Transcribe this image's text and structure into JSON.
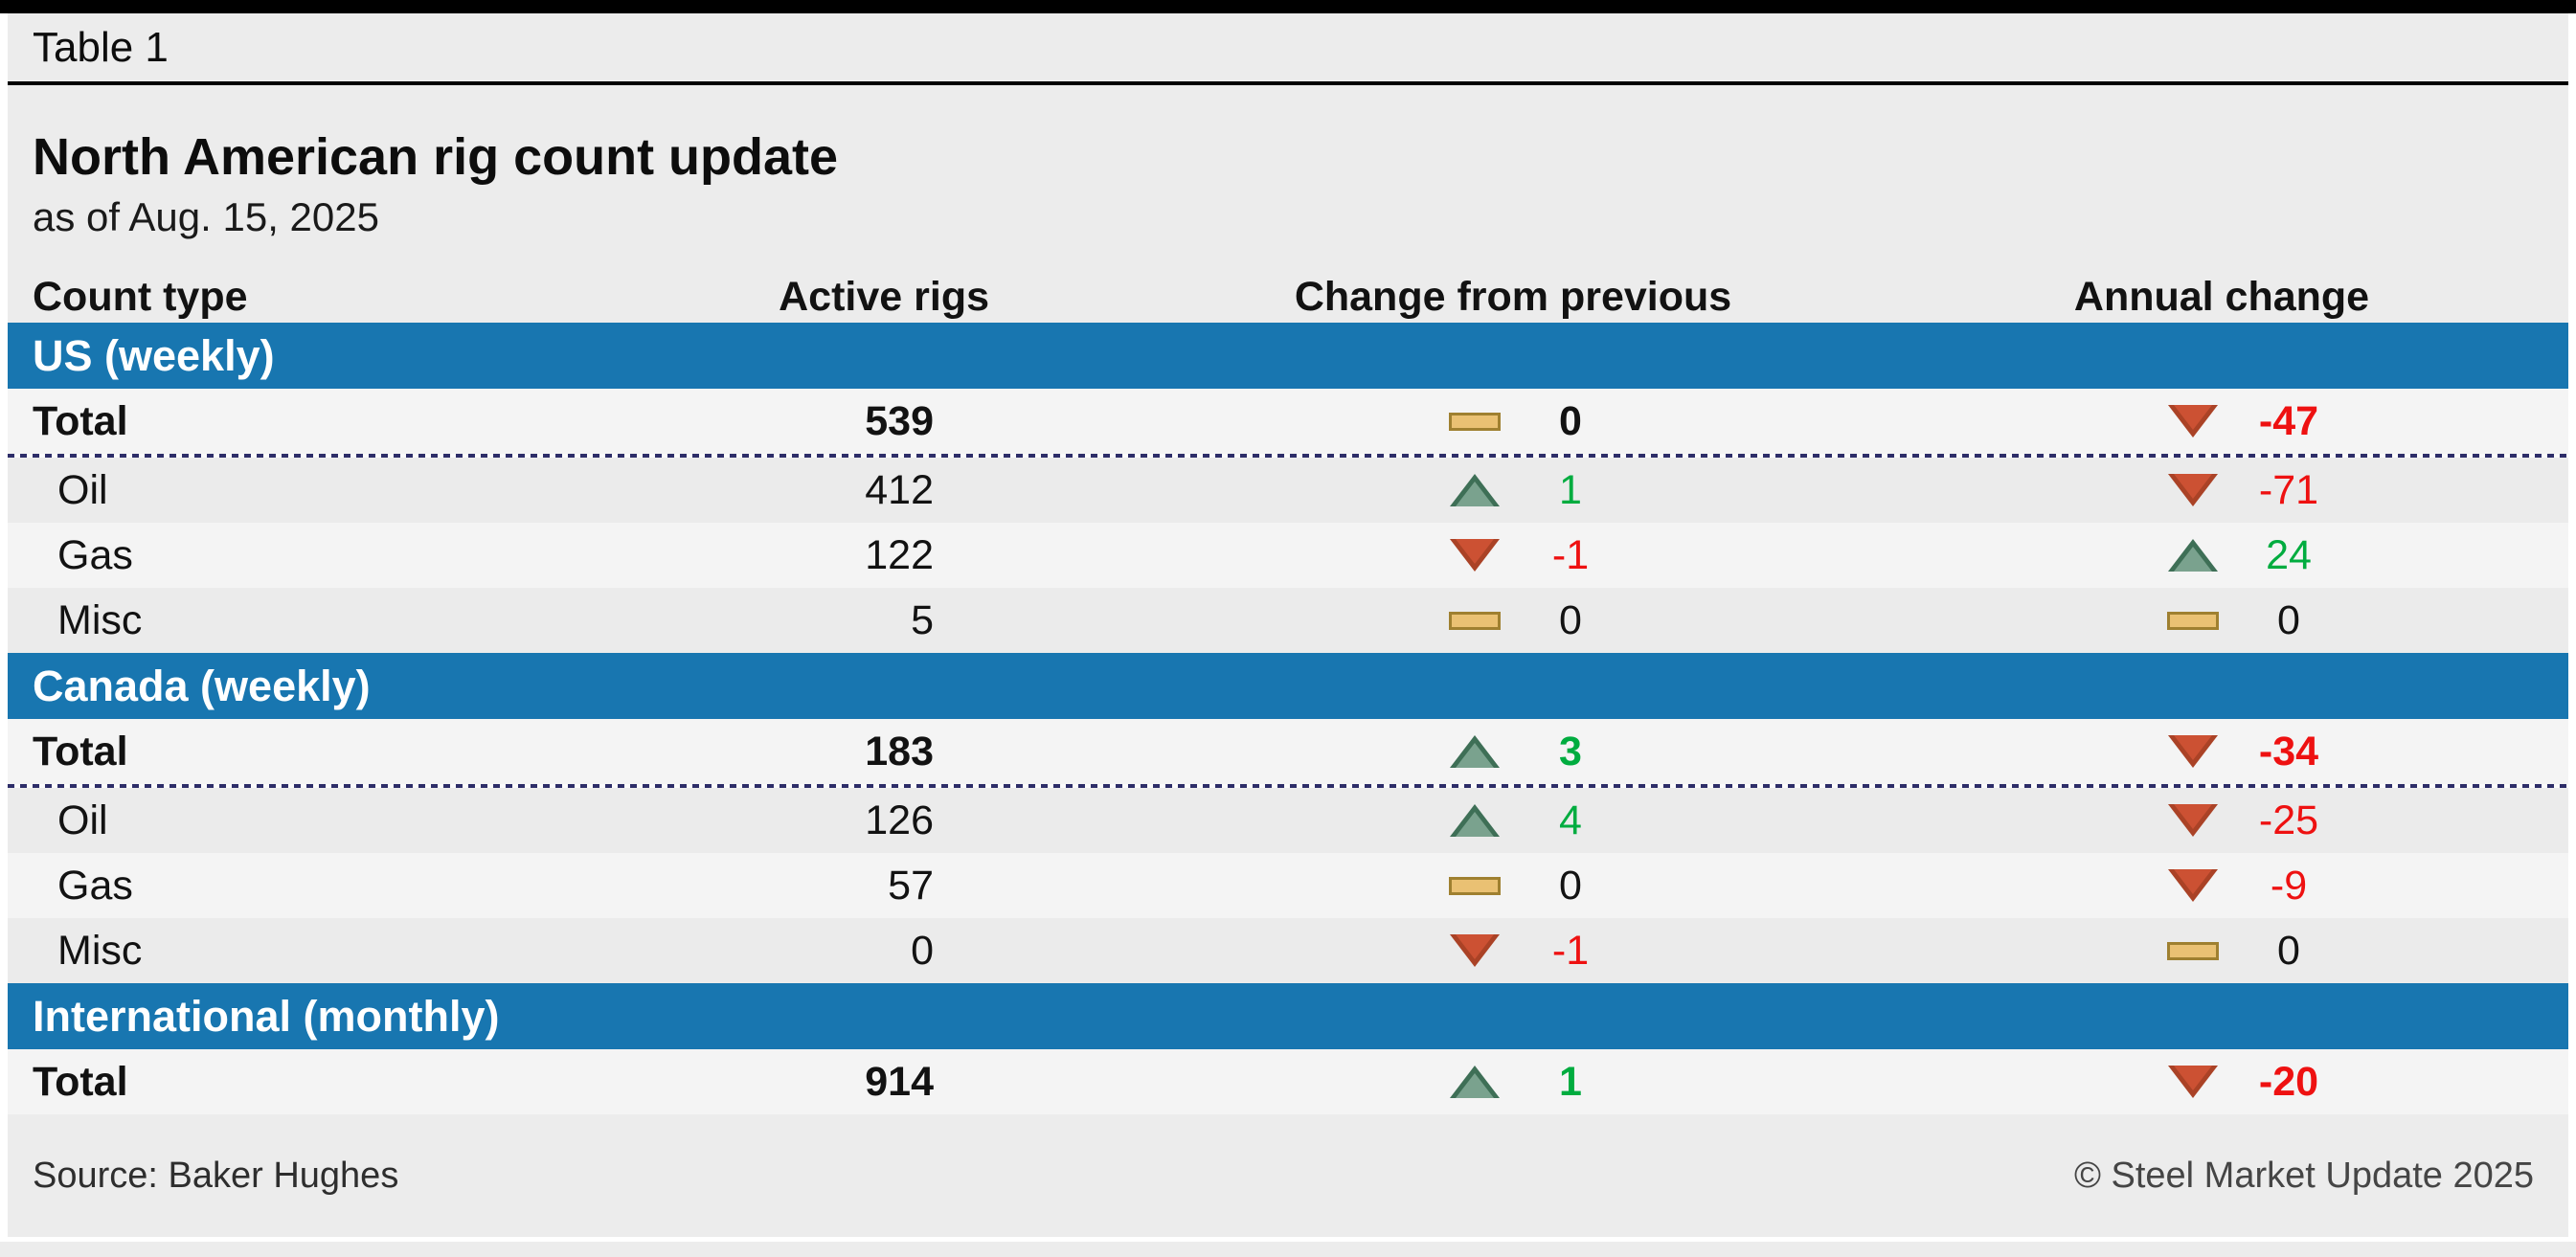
{
  "page": {
    "kicker": "Table 1",
    "title": "North American rig count update",
    "subtitle": "as of Aug. 15, 2025",
    "source": "Source: Baker Hughes",
    "copyright": "© Steel Market Update 2025"
  },
  "columns": {
    "count_type": "Count type",
    "active_rigs": "Active rigs",
    "change_prev": "Change from previous",
    "annual_change": "Annual change"
  },
  "colors": {
    "section_band_blue": "#1876b0",
    "positive_green": "#00ac3f",
    "negative_red": "#ee1111",
    "up_triangle_fill": "#7aa28e",
    "down_triangle_fill": "#cc5133",
    "flat_rect_fill": "#eac173",
    "row_light": "#f4f4f4",
    "row_dark": "#ebebeb"
  },
  "sections": [
    {
      "label": "US (weekly)",
      "rows": [
        {
          "classes": "row total light",
          "label": "Total",
          "active": "539",
          "prev": {
            "icon": "flat",
            "value": "0",
            "tone": "neutral"
          },
          "annual": {
            "icon": "down",
            "value": "-47",
            "tone": "neg"
          }
        },
        {
          "classes": "row dark",
          "label": "Oil",
          "active": "412",
          "prev": {
            "icon": "up",
            "value": "1",
            "tone": "pos"
          },
          "annual": {
            "icon": "down",
            "value": "-71",
            "tone": "neg"
          }
        },
        {
          "classes": "row light",
          "label": "Gas",
          "active": "122",
          "prev": {
            "icon": "down",
            "value": "-1",
            "tone": "neg"
          },
          "annual": {
            "icon": "up",
            "value": "24",
            "tone": "pos"
          }
        },
        {
          "classes": "row dark",
          "label": "Misc",
          "active": "5",
          "prev": {
            "icon": "flat",
            "value": "0",
            "tone": "neutral"
          },
          "annual": {
            "icon": "flat",
            "value": "0",
            "tone": "neutral"
          }
        }
      ]
    },
    {
      "label": "Canada (weekly)",
      "rows": [
        {
          "classes": "row total light",
          "label": "Total",
          "active": "183",
          "prev": {
            "icon": "up",
            "value": "3",
            "tone": "pos"
          },
          "annual": {
            "icon": "down",
            "value": "-34",
            "tone": "neg"
          }
        },
        {
          "classes": "row dark",
          "label": "Oil",
          "active": "126",
          "prev": {
            "icon": "up",
            "value": "4",
            "tone": "pos"
          },
          "annual": {
            "icon": "down",
            "value": "-25",
            "tone": "neg"
          }
        },
        {
          "classes": "row light",
          "label": "Gas",
          "active": "57",
          "prev": {
            "icon": "flat",
            "value": "0",
            "tone": "neutral"
          },
          "annual": {
            "icon": "down",
            "value": "-9",
            "tone": "neg"
          }
        },
        {
          "classes": "row dark",
          "label": "Misc",
          "active": "0",
          "prev": {
            "icon": "down",
            "value": "-1",
            "tone": "neg"
          },
          "annual": {
            "icon": "flat",
            "value": "0",
            "tone": "neutral"
          }
        }
      ]
    },
    {
      "label": "International (monthly)",
      "rows": [
        {
          "classes": "row total light",
          "label": "Total",
          "active": "914",
          "prev": {
            "icon": "up",
            "value": "1",
            "tone": "pos"
          },
          "annual": {
            "icon": "down",
            "value": "-20",
            "tone": "neg"
          }
        }
      ]
    }
  ],
  "chart_data": {
    "type": "table",
    "title": "North American rig count update",
    "subtitle": "as of Aug. 15, 2025",
    "columns": [
      "Count type",
      "Active rigs",
      "Change from previous",
      "Annual change"
    ],
    "sections": [
      {
        "name": "US (weekly)",
        "rows": [
          {
            "count_type": "Total",
            "active_rigs": 539,
            "change_from_previous": 0,
            "annual_change": -47
          },
          {
            "count_type": "Oil",
            "active_rigs": 412,
            "change_from_previous": 1,
            "annual_change": -71
          },
          {
            "count_type": "Gas",
            "active_rigs": 122,
            "change_from_previous": -1,
            "annual_change": 24
          },
          {
            "count_type": "Misc",
            "active_rigs": 5,
            "change_from_previous": 0,
            "annual_change": 0
          }
        ]
      },
      {
        "name": "Canada (weekly)",
        "rows": [
          {
            "count_type": "Total",
            "active_rigs": 183,
            "change_from_previous": 3,
            "annual_change": -34
          },
          {
            "count_type": "Oil",
            "active_rigs": 126,
            "change_from_previous": 4,
            "annual_change": -25
          },
          {
            "count_type": "Gas",
            "active_rigs": 57,
            "change_from_previous": 0,
            "annual_change": -9
          },
          {
            "count_type": "Misc",
            "active_rigs": 0,
            "change_from_previous": -1,
            "annual_change": 0
          }
        ]
      },
      {
        "name": "International (monthly)",
        "rows": [
          {
            "count_type": "Total",
            "active_rigs": 914,
            "change_from_previous": 1,
            "annual_change": -20
          }
        ]
      }
    ],
    "source": "Baker Hughes",
    "legend": {
      "up_triangle": "increase",
      "down_triangle": "decrease",
      "flat_rectangle": "no change"
    }
  }
}
